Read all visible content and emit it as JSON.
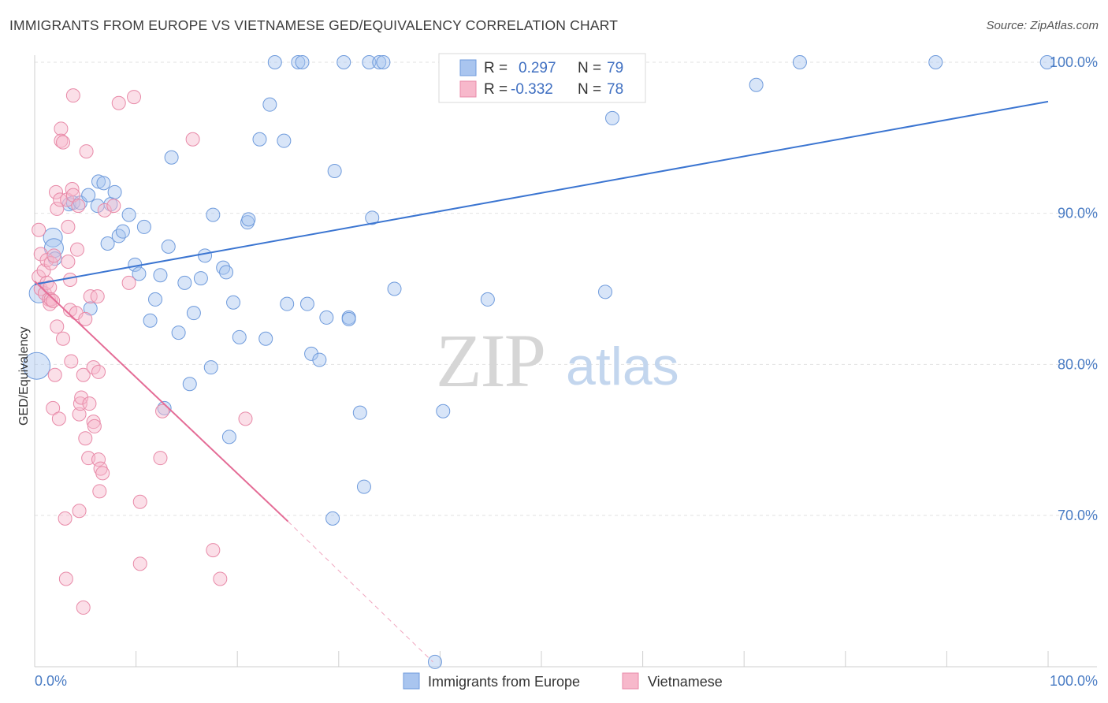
{
  "header": {
    "title": "IMMIGRANTS FROM EUROPE VS VIETNAMESE GED/EQUIVALENCY CORRELATION CHART",
    "source": "Source: ZipAtlas.com"
  },
  "watermark": {
    "zip": "ZIP",
    "atlas": "atlas"
  },
  "legend": {
    "r_label": "R =",
    "n_label": "N =",
    "rows": [
      {
        "r": "0.297",
        "n": "79",
        "color": "#a9c5ef",
        "stroke": "#6f9bdc"
      },
      {
        "r": "-0.332",
        "n": "78",
        "color": "#f7b8cb",
        "stroke": "#e88aa8"
      }
    ]
  },
  "chart_data": {
    "type": "scatter",
    "title": "IMMIGRANTS FROM EUROPE VS VIETNAMESE GED/EQUIVALENCY CORRELATION CHART",
    "xlabel": "",
    "ylabel": "GED/Equivalency",
    "xlim": [
      0,
      100
    ],
    "ylim": [
      60,
      101.5
    ],
    "x_ticks": [
      "0.0%",
      "100.0%"
    ],
    "y_ticks": [
      {
        "value": 70,
        "label": "70.0%"
      },
      {
        "value": 80,
        "label": "80.0%"
      },
      {
        "value": 90,
        "label": "90.0%"
      },
      {
        "value": 100,
        "label": "100.0%"
      }
    ],
    "grid": true,
    "legend_position": "bottom",
    "series": [
      {
        "name": "Immigrants from Europe",
        "color": "#a9c5ef",
        "stroke": "#6f9bdc",
        "trend": {
          "x": [
            0,
            100
          ],
          "y": [
            85.3,
            97.4
          ],
          "color": "#3b75d1"
        },
        "points": [
          [
            0.2,
            79.9,
            3
          ],
          [
            0.4,
            84.7,
            2
          ],
          [
            1.8,
            88.4,
            2
          ],
          [
            1.9,
            87.7,
            2
          ],
          [
            2.0,
            87.0,
            1.5
          ],
          [
            3.4,
            90.6,
            1.5
          ],
          [
            3.8,
            90.7,
            1.5
          ],
          [
            4.5,
            90.7,
            1.5
          ],
          [
            5.3,
            91.2,
            1.5
          ],
          [
            5.5,
            83.7,
            1.5
          ],
          [
            6.2,
            90.5,
            1.5
          ],
          [
            6.3,
            92.1,
            1.5
          ],
          [
            6.8,
            92.0,
            1.5
          ],
          [
            7.2,
            88.0,
            1.5
          ],
          [
            7.5,
            90.6,
            1.5
          ],
          [
            7.9,
            91.4,
            1.5
          ],
          [
            8.3,
            88.5,
            1.5
          ],
          [
            8.7,
            88.8,
            1.5
          ],
          [
            9.3,
            89.9,
            1.5
          ],
          [
            9.9,
            86.6,
            1.5
          ],
          [
            10.3,
            86.0,
            1.5
          ],
          [
            10.8,
            89.1,
            1.5
          ],
          [
            11.4,
            82.9,
            1.5
          ],
          [
            11.9,
            84.3,
            1.5
          ],
          [
            12.4,
            85.9,
            1.5
          ],
          [
            12.8,
            77.1,
            1.5
          ],
          [
            13.2,
            87.8,
            1.5
          ],
          [
            13.5,
            93.7,
            1.5
          ],
          [
            14.2,
            82.1,
            1.5
          ],
          [
            14.8,
            85.4,
            1.5
          ],
          [
            15.3,
            78.7,
            1.5
          ],
          [
            15.7,
            83.4,
            1.5
          ],
          [
            16.4,
            85.7,
            1.5
          ],
          [
            16.8,
            87.2,
            1.5
          ],
          [
            17.4,
            79.8,
            1.5
          ],
          [
            17.6,
            89.9,
            1.5
          ],
          [
            18.6,
            86.4,
            1.5
          ],
          [
            18.9,
            86.1,
            1.5
          ],
          [
            19.2,
            75.2,
            1.5
          ],
          [
            19.6,
            84.1,
            1.5
          ],
          [
            20.2,
            81.8,
            1.5
          ],
          [
            21.0,
            89.4,
            1.5
          ],
          [
            21.1,
            89.6,
            1.5
          ],
          [
            22.2,
            94.9,
            1.5
          ],
          [
            22.8,
            81.7,
            1.5
          ],
          [
            23.2,
            97.2,
            1.5
          ],
          [
            23.7,
            100.0,
            1.5
          ],
          [
            24.6,
            94.8,
            1.5
          ],
          [
            24.9,
            84.0,
            1.5
          ],
          [
            26.0,
            100.0,
            1.5
          ],
          [
            26.4,
            100.0,
            1.5
          ],
          [
            26.9,
            84.0,
            1.5
          ],
          [
            27.3,
            80.7,
            1.5
          ],
          [
            28.1,
            80.3,
            1.5
          ],
          [
            28.8,
            83.1,
            1.5
          ],
          [
            29.4,
            69.8,
            1.5
          ],
          [
            29.6,
            92.8,
            1.5
          ],
          [
            30.5,
            100.0,
            1.5
          ],
          [
            31.0,
            83.1,
            1.5
          ],
          [
            31.0,
            83.0,
            1.5
          ],
          [
            32.1,
            76.8,
            1.5
          ],
          [
            32.5,
            71.9,
            1.5
          ],
          [
            33.0,
            100.0,
            1.5
          ],
          [
            33.3,
            89.7,
            1.5
          ],
          [
            34.0,
            100.0,
            1.5
          ],
          [
            34.4,
            100.0,
            1.5
          ],
          [
            35.5,
            85.0,
            1.5
          ],
          [
            39.5,
            60.3,
            1.5
          ],
          [
            40.3,
            76.9,
            1.5
          ],
          [
            44.7,
            84.3,
            1.5
          ],
          [
            47.5,
            100.0,
            1.5
          ],
          [
            56.3,
            84.8,
            1.5
          ],
          [
            57.0,
            96.3,
            1.5
          ],
          [
            71.2,
            98.5,
            1.5
          ],
          [
            75.5,
            100.0,
            1.5
          ],
          [
            88.9,
            100.0,
            1.5
          ],
          [
            99.9,
            100.0,
            1.5
          ]
        ]
      },
      {
        "name": "Vietnamese",
        "color": "#f7b8cb",
        "stroke": "#e88aa8",
        "trend": {
          "x": [
            0,
            25
          ],
          "y": [
            85.5,
            69.6
          ],
          "color": "#e46c96",
          "dash_to": [
            39.3,
            60.3
          ]
        },
        "points": [
          [
            0.4,
            88.9,
            1.5
          ],
          [
            0.4,
            85.8,
            1.5
          ],
          [
            0.6,
            85.0,
            1.5
          ],
          [
            0.6,
            87.3,
            1.5
          ],
          [
            0.9,
            86.2,
            1.5
          ],
          [
            1.0,
            84.7,
            1.5
          ],
          [
            1.2,
            86.9,
            1.5
          ],
          [
            1.2,
            85.4,
            1.5
          ],
          [
            1.4,
            84.3,
            1.5
          ],
          [
            1.5,
            85.1,
            1.5
          ],
          [
            1.5,
            84.0,
            1.5
          ],
          [
            1.6,
            84.3,
            1.5
          ],
          [
            1.6,
            86.7,
            1.5
          ],
          [
            1.8,
            84.2,
            1.5
          ],
          [
            1.8,
            77.1,
            1.5
          ],
          [
            1.9,
            87.2,
            1.5
          ],
          [
            2.0,
            79.3,
            1.5
          ],
          [
            2.1,
            91.4,
            1.5
          ],
          [
            2.2,
            90.3,
            1.5
          ],
          [
            2.2,
            82.5,
            1.5
          ],
          [
            2.4,
            76.4,
            1.5
          ],
          [
            2.5,
            90.9,
            1.5
          ],
          [
            2.6,
            95.6,
            1.5
          ],
          [
            2.6,
            94.8,
            1.5
          ],
          [
            2.8,
            94.7,
            1.5
          ],
          [
            2.8,
            81.7,
            1.5
          ],
          [
            3.0,
            69.8,
            1.5
          ],
          [
            3.1,
            65.8,
            1.5
          ],
          [
            3.2,
            90.9,
            1.5
          ],
          [
            3.3,
            89.1,
            1.5
          ],
          [
            3.3,
            86.8,
            1.5
          ],
          [
            3.5,
            85.6,
            1.5
          ],
          [
            3.5,
            83.6,
            1.5
          ],
          [
            3.6,
            80.2,
            1.5
          ],
          [
            3.7,
            91.6,
            1.5
          ],
          [
            3.8,
            91.2,
            1.5
          ],
          [
            3.8,
            97.8,
            1.5
          ],
          [
            4.1,
            83.4,
            1.5
          ],
          [
            4.2,
            87.6,
            1.5
          ],
          [
            4.3,
            90.5,
            1.5
          ],
          [
            4.4,
            70.3,
            1.5
          ],
          [
            4.4,
            76.7,
            1.5
          ],
          [
            4.5,
            77.4,
            1.5
          ],
          [
            4.6,
            77.8,
            1.5
          ],
          [
            4.8,
            79.3,
            1.5
          ],
          [
            4.8,
            63.9,
            1.5
          ],
          [
            5.0,
            83.0,
            1.5
          ],
          [
            5.0,
            75.1,
            1.5
          ],
          [
            5.1,
            94.1,
            1.5
          ],
          [
            5.3,
            73.8,
            1.5
          ],
          [
            5.4,
            77.4,
            1.5
          ],
          [
            5.5,
            84.5,
            1.5
          ],
          [
            5.8,
            76.2,
            1.5
          ],
          [
            5.8,
            79.8,
            1.5
          ],
          [
            5.9,
            75.9,
            1.5
          ],
          [
            6.2,
            84.5,
            1.5
          ],
          [
            6.3,
            79.5,
            1.5
          ],
          [
            6.3,
            73.7,
            1.5
          ],
          [
            6.4,
            71.6,
            1.5
          ],
          [
            6.5,
            73.1,
            1.5
          ],
          [
            6.7,
            72.8,
            1.5
          ],
          [
            6.9,
            90.2,
            1.5
          ],
          [
            7.8,
            90.5,
            1.5
          ],
          [
            8.3,
            97.3,
            1.5
          ],
          [
            9.3,
            85.4,
            1.5
          ],
          [
            9.8,
            97.7,
            1.5
          ],
          [
            10.4,
            70.9,
            1.5
          ],
          [
            10.4,
            66.8,
            1.5
          ],
          [
            12.4,
            73.8,
            1.5
          ],
          [
            12.6,
            76.9,
            1.5
          ],
          [
            15.6,
            94.9,
            1.5
          ],
          [
            17.6,
            67.7,
            1.5
          ],
          [
            18.3,
            65.8,
            1.5
          ],
          [
            20.8,
            76.4,
            1.5
          ]
        ]
      }
    ]
  },
  "bottom_legend": [
    {
      "label": "Immigrants from Europe",
      "color": "#a9c5ef",
      "stroke": "#6f9bdc"
    },
    {
      "label": "Vietnamese",
      "color": "#f7b8cb",
      "stroke": "#e88aa8"
    }
  ]
}
